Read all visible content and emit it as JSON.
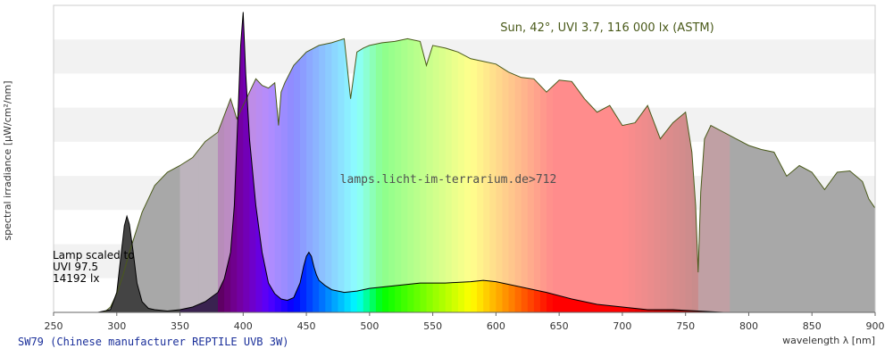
{
  "chart_data": {
    "type": "area",
    "title": "Sun, 42°, UVI 3.7, 116 000 lx (ASTM)",
    "xlabel": "wavelength λ [nm]",
    "ylabel": "spectral irradiance [µW/cm²/nm]",
    "xlim": [
      250,
      900
    ],
    "xticks": [
      "250",
      "300",
      "350",
      "400",
      "450",
      "500",
      "550",
      "600",
      "650",
      "700",
      "750",
      "800",
      "850",
      "900"
    ],
    "grid": "horizontal bands",
    "watermark": "lamps.licht-im-terrarium.de>712",
    "lamp_note": [
      "Lamp scaled to",
      "UVI 97.5",
      "14192 lx"
    ],
    "caption": "SW79 (Chinese manufacturer REPTILE UVB 3W)",
    "series": [
      {
        "name": "Sun, 42°, UVI 3.7, 116 000 lx (ASTM)",
        "color": "#4a5a1a",
        "x": [
          290,
          295,
          300,
          305,
          310,
          315,
          320,
          330,
          340,
          350,
          360,
          370,
          380,
          390,
          395,
          400,
          405,
          410,
          415,
          420,
          425,
          428,
          430,
          433,
          440,
          450,
          460,
          470,
          480,
          485,
          490,
          495,
          500,
          510,
          520,
          530,
          540,
          545,
          550,
          560,
          570,
          580,
          590,
          600,
          610,
          620,
          630,
          640,
          650,
          660,
          670,
          680,
          690,
          700,
          710,
          720,
          730,
          740,
          750,
          755,
          758,
          760,
          762,
          765,
          770,
          780,
          790,
          800,
          810,
          820,
          830,
          840,
          850,
          860,
          870,
          880,
          890,
          895,
          900
        ],
        "values": [
          0,
          4,
          14,
          28,
          45,
          60,
          75,
          95,
          105,
          110,
          116,
          128,
          135,
          160,
          145,
          155,
          165,
          175,
          170,
          168,
          172,
          140,
          165,
          172,
          185,
          195,
          200,
          202,
          205,
          160,
          195,
          198,
          200,
          202,
          203,
          205,
          203,
          185,
          200,
          198,
          195,
          190,
          188,
          186,
          180,
          176,
          175,
          165,
          174,
          173,
          160,
          150,
          155,
          140,
          142,
          155,
          130,
          142,
          150,
          120,
          80,
          30,
          90,
          130,
          140,
          135,
          130,
          125,
          122,
          120,
          102,
          110,
          105,
          92,
          105,
          106,
          98,
          85,
          78
        ]
      },
      {
        "name": "SW79 lamp",
        "color": "#000000",
        "x": [
          270,
          285,
          295,
          300,
          303,
          306,
          308,
          310,
          313,
          316,
          320,
          325,
          330,
          340,
          350,
          360,
          370,
          380,
          385,
          390,
          393,
          396,
          398,
          400,
          402,
          405,
          410,
          415,
          420,
          425,
          430,
          435,
          440,
          445,
          448,
          450,
          452,
          454,
          456,
          458,
          460,
          465,
          470,
          480,
          490,
          500,
          520,
          540,
          560,
          580,
          590,
          600,
          620,
          640,
          660,
          680,
          700,
          720,
          740,
          760,
          780,
          800
        ],
        "values": [
          0,
          0,
          2,
          15,
          40,
          65,
          72,
          66,
          45,
          22,
          8,
          3,
          2,
          1,
          2,
          4,
          8,
          15,
          25,
          45,
          80,
          150,
          200,
          225,
          180,
          130,
          80,
          45,
          22,
          14,
          10,
          9,
          11,
          22,
          35,
          42,
          45,
          42,
          34,
          28,
          24,
          20,
          17,
          15,
          16,
          18,
          20,
          22,
          22,
          23,
          24,
          23,
          19,
          15,
          10,
          6,
          4,
          2,
          2,
          1,
          0,
          0
        ]
      }
    ]
  }
}
